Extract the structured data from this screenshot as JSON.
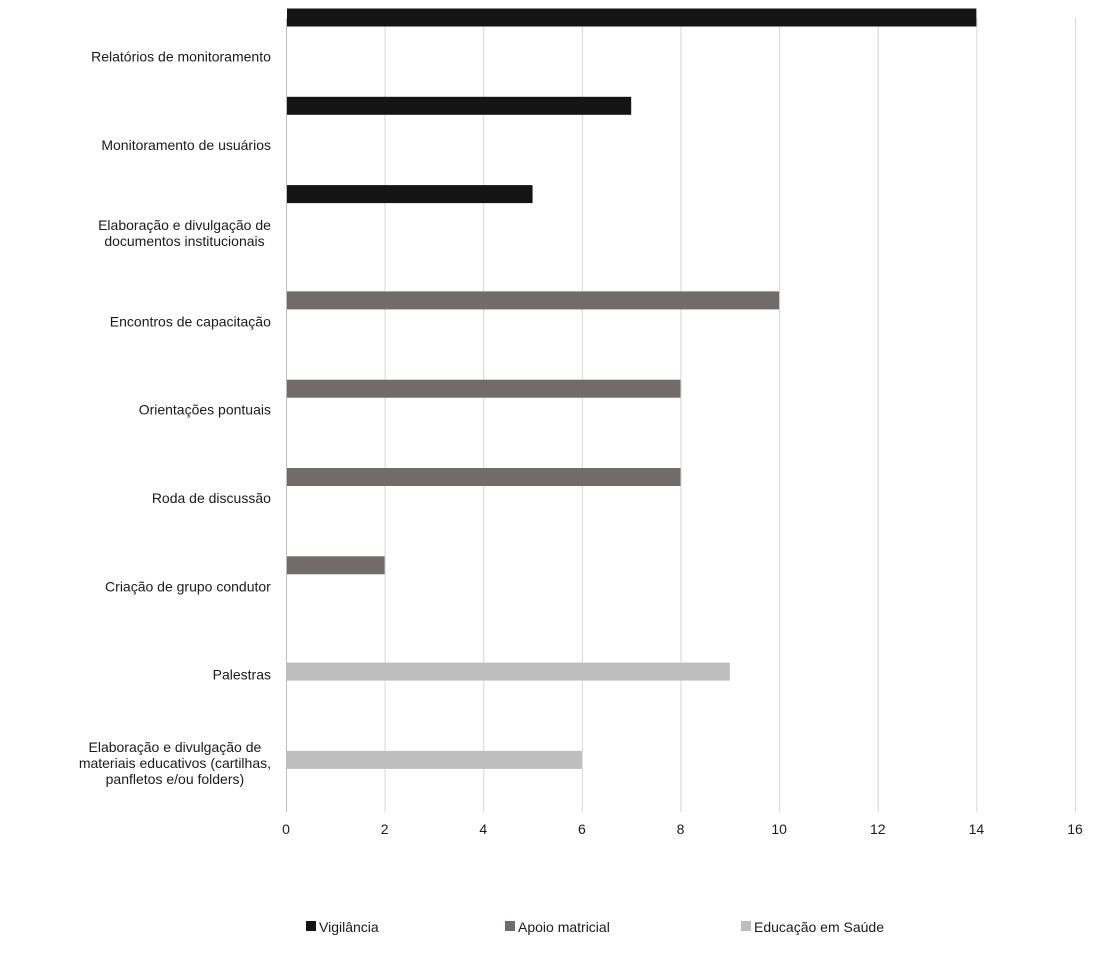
{
  "chart_data": {
    "type": "bar",
    "orientation": "horizontal",
    "title": "",
    "xlabel": "",
    "ylabel": "",
    "xlim": [
      0,
      16
    ],
    "x_ticks": [
      0,
      2,
      4,
      6,
      8,
      10,
      12,
      14,
      16
    ],
    "grid": "vertical",
    "legend_position": "bottom",
    "categories": [
      "Relatórios de monitoramento",
      "Monitoramento de usuários",
      "Elaboração e divulgação de documentos institucionais",
      "Encontros de capacitação",
      "Orientações pontuais",
      "Roda de discussão",
      "Criação de grupo condutor",
      "Palestras",
      "Elaboração e divulgação de materiais educativos (cartilhas, panfletos e/ou folders)"
    ],
    "category_label_lines": [
      [
        "Relatórios de monitoramento"
      ],
      [
        "Monitoramento de usuários"
      ],
      [
        "Elaboração e divulgação de",
        "documentos institucionais"
      ],
      [
        "Encontros de capacitação"
      ],
      [
        "Orientações pontuais"
      ],
      [
        "Roda de discussão"
      ],
      [
        "Criação de grupo condutor"
      ],
      [
        "Palestras"
      ],
      [
        "Elaboração e divulgação de",
        "materiais educativos (cartilhas,",
        "panfletos e/ou folders)"
      ]
    ],
    "series": [
      {
        "name": "Vigilância",
        "color": "#141414",
        "values": [
          14,
          7,
          5,
          null,
          null,
          null,
          null,
          null,
          null
        ]
      },
      {
        "name": "Apoio matricial",
        "color": "#716b6b",
        "values": [
          null,
          null,
          null,
          10,
          8,
          8,
          2,
          null,
          null
        ]
      },
      {
        "name": "Educação em Saúde",
        "color": "#bdbdbd",
        "values": [
          null,
          null,
          null,
          null,
          null,
          null,
          null,
          9,
          6
        ]
      }
    ]
  }
}
